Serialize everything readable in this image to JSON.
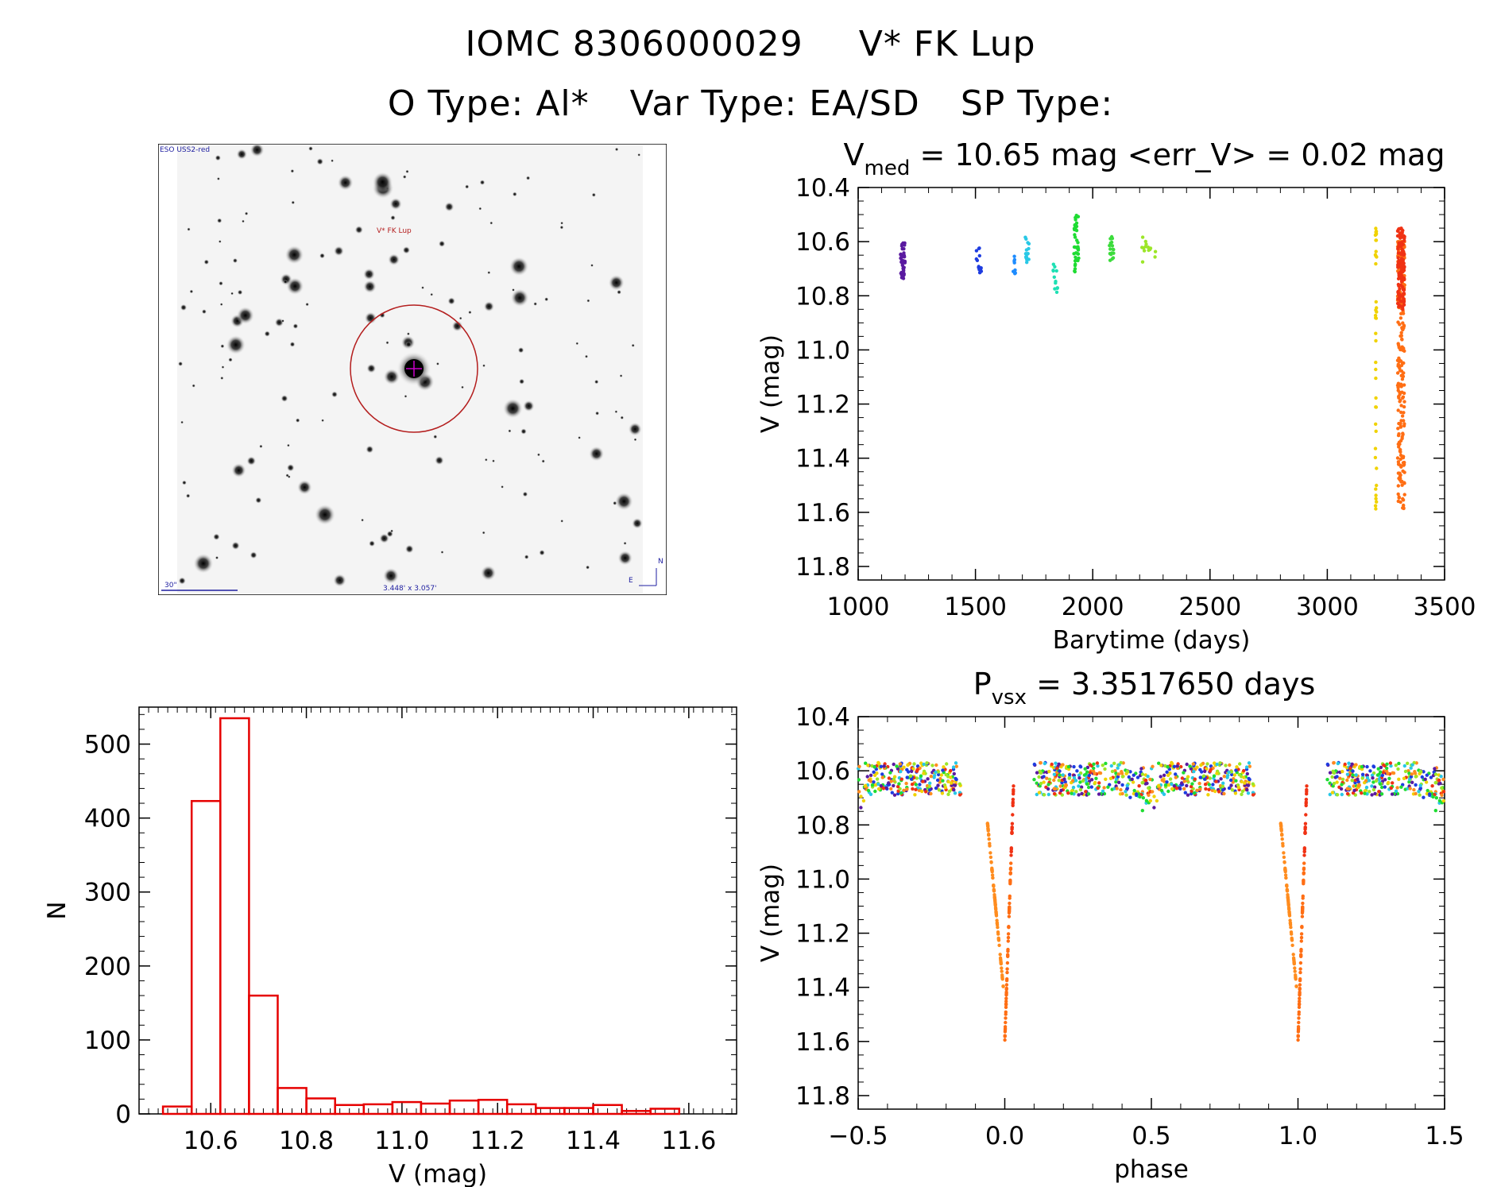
{
  "header": {
    "id": "IOMC 8306000029",
    "name": "V* FK Lup",
    "otype": "O Type: Al*",
    "vartype": "Var Type: EA/SD",
    "sptype": "SP Type:"
  },
  "sky_image": {
    "survey": "ESO USS2-red",
    "target": "V* FK Lup",
    "scale_label": "30\"",
    "field_size": "3.448' x 3.057'",
    "north": "N",
    "east": "E"
  },
  "chart_data": [
    {
      "type": "scatter",
      "title_main": "V",
      "title_sub": "med",
      "title_rest": "= 10.65 mag <err_V> = 0.02 mag",
      "xlabel": "Barytime (days)",
      "ylabel": "V (mag)",
      "xlim": [
        1000,
        3500
      ],
      "ylim": [
        11.85,
        10.4
      ],
      "xticks": [
        "1000",
        "1500",
        "2000",
        "2500",
        "3000",
        "3500"
      ],
      "yticks": [
        "10.4",
        "10.6",
        "10.8",
        "11.0",
        "11.2",
        "11.4",
        "11.6",
        "11.8"
      ],
      "series": [
        {
          "color": "#5a1aa0",
          "x": [
            1180,
            1200
          ],
          "y": [
            10.6,
            10.75
          ],
          "n": 40
        },
        {
          "color": "#1e3ce0",
          "x": [
            1500,
            1525
          ],
          "y": [
            10.62,
            10.72
          ],
          "n": 14
        },
        {
          "color": "#1e8cff",
          "x": [
            1660,
            1670
          ],
          "y": [
            10.63,
            10.74
          ],
          "n": 8
        },
        {
          "color": "#28c8e6",
          "x": [
            1710,
            1730
          ],
          "y": [
            10.58,
            10.68
          ],
          "n": 16
        },
        {
          "color": "#1ee0b4",
          "x": [
            1830,
            1850
          ],
          "y": [
            10.68,
            10.8
          ],
          "n": 12
        },
        {
          "color": "#1edc32",
          "x": [
            1920,
            1940
          ],
          "y": [
            10.5,
            10.72
          ],
          "n": 40
        },
        {
          "color": "#3cdc3c",
          "x": [
            2070,
            2090
          ],
          "y": [
            10.58,
            10.67
          ],
          "n": 18
        },
        {
          "color": "#9ce628",
          "x": [
            2210,
            2270
          ],
          "y": [
            10.58,
            10.68
          ],
          "n": 14
        },
        {
          "color": "#f0d200",
          "x": [
            3205,
            3210
          ],
          "y": [
            10.55,
            11.6
          ],
          "n": 40
        },
        {
          "color": "#ff6e14",
          "x": [
            3300,
            3330
          ],
          "y": [
            10.6,
            11.6
          ],
          "n": 240
        },
        {
          "color": "#f03214",
          "x": [
            3300,
            3330
          ],
          "y": [
            10.55,
            10.85
          ],
          "n": 120
        }
      ]
    },
    {
      "type": "bar",
      "xlabel": "V (mag)",
      "ylabel": "N",
      "xlim": [
        10.45,
        11.7
      ],
      "ylim": [
        0,
        550
      ],
      "xticks": [
        "10.6",
        "10.8",
        "11.0",
        "11.2",
        "11.4",
        "11.6"
      ],
      "yticks": [
        "0",
        "100",
        "200",
        "300",
        "400",
        "500"
      ],
      "color": "#e60000",
      "bin_width": 0.06,
      "bin_left": [
        10.5,
        10.56,
        10.62,
        10.68,
        10.74,
        10.8,
        10.86,
        10.92,
        10.98,
        11.04,
        11.1,
        11.16,
        11.22,
        11.28,
        11.34,
        11.4,
        11.46,
        11.52,
        11.58
      ],
      "values": [
        10,
        423,
        535,
        160,
        35,
        21,
        12,
        13,
        16,
        14,
        18,
        19,
        13,
        8,
        8,
        12,
        4,
        7,
        0
      ]
    },
    {
      "type": "scatter",
      "title_main": "P",
      "title_sub": "vsx",
      "title_rest": "= 3.3517650 days",
      "xlabel": "phase",
      "ylabel": "V (mag)",
      "xlim": [
        -0.5,
        1.5
      ],
      "ylim": [
        11.85,
        10.4
      ],
      "xticks": [
        "−0.5",
        "0.0",
        "0.5",
        "1.0",
        "1.5"
      ],
      "yticks": [
        "10.4",
        "10.6",
        "10.8",
        "11.0",
        "11.2",
        "11.4",
        "11.6",
        "11.8"
      ],
      "period_days": 3.351765,
      "series": [
        {
          "color": "#5a1aa0"
        },
        {
          "color": "#1e3ce0"
        },
        {
          "color": "#28c8e6"
        },
        {
          "color": "#1edc32"
        },
        {
          "color": "#9ce628"
        },
        {
          "color": "#f0d200"
        },
        {
          "color": "#ff8c1e"
        },
        {
          "color": "#f03214"
        }
      ]
    }
  ]
}
